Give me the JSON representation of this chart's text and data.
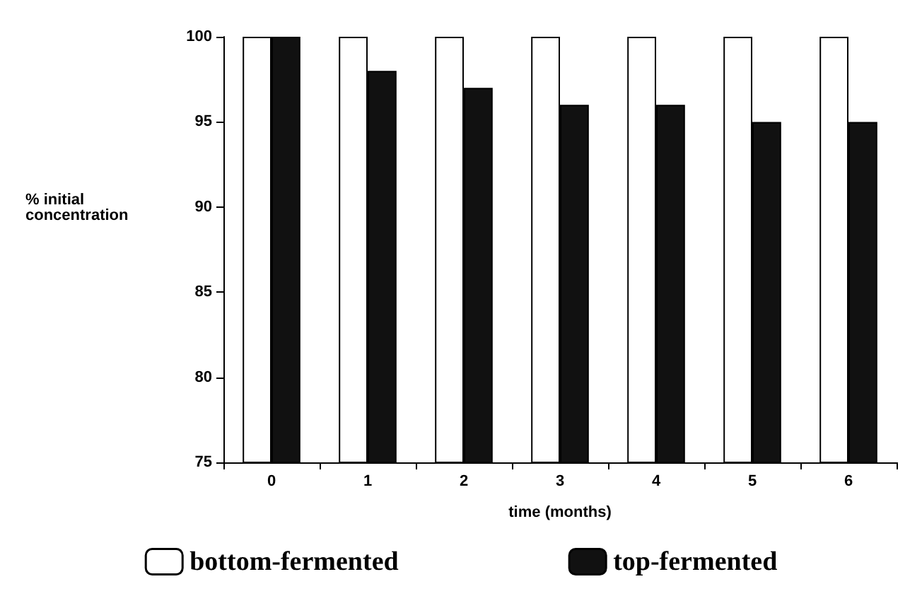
{
  "chart_data": {
    "type": "bar",
    "xlabel": "time (months)",
    "ylabel": "% initial concentration",
    "categories": [
      "0",
      "1",
      "2",
      "3",
      "4",
      "5",
      "6"
    ],
    "series": [
      {
        "name": "bottom-fermented",
        "color": "#ffffff",
        "values": [
          100,
          100,
          100,
          100,
          100,
          100,
          100
        ]
      },
      {
        "name": "top-fermented",
        "color": "#111111",
        "values": [
          100,
          98,
          97,
          96,
          96,
          95,
          95
        ]
      }
    ],
    "ylim": [
      75,
      100
    ],
    "yticks": [
      75,
      80,
      85,
      90,
      95,
      100
    ],
    "grid": false,
    "legend": "bottom"
  }
}
